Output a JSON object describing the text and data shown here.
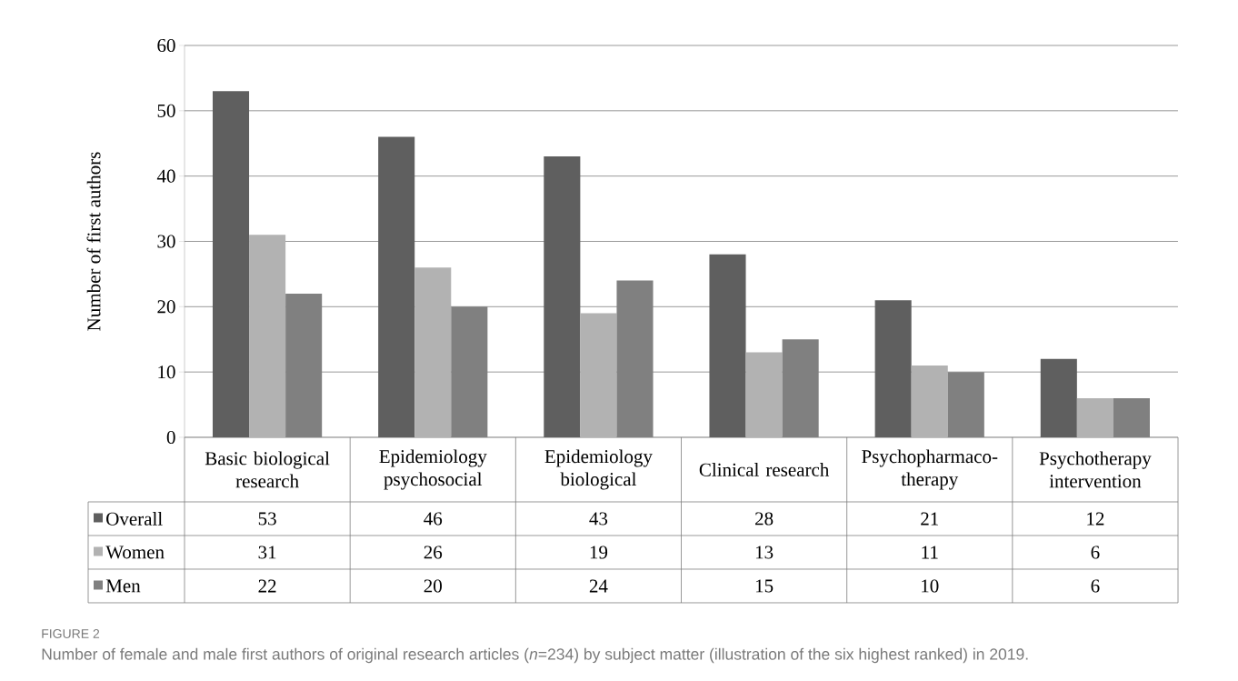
{
  "chart_data": {
    "type": "bar",
    "categories": [
      "Basic biological research",
      "Epidemiology psychosocial",
      "Epidemiology biological",
      "Clinical research",
      "Psychopharmaco-therapy",
      "Psychotherapy intervention"
    ],
    "series": [
      {
        "name": "Overall",
        "color": "#5f5f5f",
        "values": [
          53,
          46,
          43,
          28,
          21,
          12
        ]
      },
      {
        "name": "Women",
        "color": "#b2b2b2",
        "values": [
          31,
          26,
          19,
          13,
          11,
          6
        ]
      },
      {
        "name": "Men",
        "color": "#808080",
        "values": [
          22,
          20,
          24,
          15,
          10,
          6
        ]
      }
    ],
    "ylabel": "Number of first authors",
    "ylim": [
      0,
      60
    ],
    "yticks": [
      0,
      10,
      20,
      30,
      40,
      50,
      60
    ],
    "grid": "y",
    "legend": "bottom",
    "data_labels": true,
    "annotations": [
      "FIGURE 2",
      "Number of female and male first authors of original research articles (*n*=234) by subject matter (illustration of the six highest ranked) in 2019."
    ]
  }
}
